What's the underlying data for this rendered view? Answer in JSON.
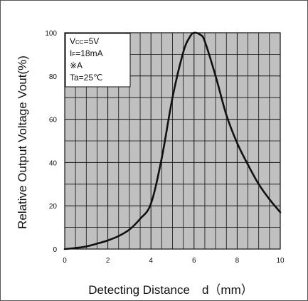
{
  "chart_data": {
    "type": "line",
    "title": "",
    "xlabel": "Detecting Distance　d（mm）",
    "ylabel": "Relative Output Voltage  Vout(%)",
    "xlim": [
      0,
      10
    ],
    "ylim": [
      0,
      100
    ],
    "x_ticks": [
      0,
      2,
      4,
      6,
      8,
      10
    ],
    "y_ticks": [
      0,
      20,
      40,
      60,
      80,
      100
    ],
    "x_minor_step": 0.5,
    "y_minor_step": 10,
    "grid": true,
    "legend_position": "top-left",
    "legend": {
      "vcc_main": "V",
      "vcc_sub": "CC",
      "vcc_value": "=5V",
      "if_main": "I",
      "if_sub": "F",
      "if_value": "=18mA",
      "mark": "※A",
      "ta": "Ta=25℃"
    },
    "series": [
      {
        "x": [
          0,
          0.5,
          1,
          1.5,
          2,
          2.5,
          3,
          3.5,
          4,
          4.5,
          5,
          5.5,
          5.8,
          6,
          6.3,
          6.5,
          7,
          7.5,
          8,
          8.5,
          9,
          9.5,
          10
        ],
        "y": [
          0,
          0.5,
          1.2,
          2.5,
          4,
          6,
          9,
          14,
          21,
          42,
          70,
          91,
          98,
          100,
          99,
          96,
          80,
          62,
          49,
          39,
          30,
          23,
          17
        ],
        "color": "#111111"
      }
    ],
    "colors": {
      "plot_bg": "#c0c0c0",
      "grid": "#111111",
      "line": "#111111",
      "legend_bg": "#ffffff",
      "frame": "#555555"
    }
  }
}
